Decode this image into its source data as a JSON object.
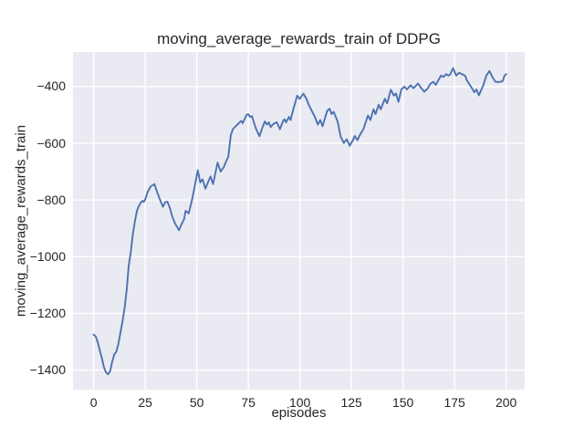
{
  "chart_data": {
    "type": "line",
    "title": "moving_average_rewards_train of DDPG",
    "xlabel": "episodes",
    "ylabel": "moving_average_rewards_train",
    "x_ticks": [
      0,
      25,
      50,
      75,
      100,
      125,
      150,
      175,
      200
    ],
    "y_ticks": [
      -400,
      -600,
      -800,
      -1000,
      -1200,
      -1400
    ],
    "xlim": [
      -10,
      209
    ],
    "ylim": [
      -1469,
      -278
    ],
    "grid": true,
    "legend_position": "none",
    "plot_background": "#eaeaf2",
    "grid_color": "#ffffff",
    "line_color": "#4c72b0",
    "text_color": "#262626",
    "series": [
      {
        "name": "moving_average_rewards_train",
        "points": [
          [
            0,
            -1275
          ],
          [
            1,
            -1281
          ],
          [
            2,
            -1302
          ],
          [
            3,
            -1330
          ],
          [
            4,
            -1358
          ],
          [
            5,
            -1390
          ],
          [
            6,
            -1408
          ],
          [
            7,
            -1415
          ],
          [
            8,
            -1404
          ],
          [
            9,
            -1370
          ],
          [
            10,
            -1345
          ],
          [
            11,
            -1335
          ],
          [
            12,
            -1308
          ],
          [
            13,
            -1268
          ],
          [
            14,
            -1228
          ],
          [
            15,
            -1182
          ],
          [
            16,
            -1120
          ],
          [
            17,
            -1033
          ],
          [
            18,
            -985
          ],
          [
            19,
            -921
          ],
          [
            20,
            -876
          ],
          [
            21,
            -838
          ],
          [
            22,
            -820
          ],
          [
            23,
            -808
          ],
          [
            23.7,
            -803
          ],
          [
            24.3,
            -807
          ],
          [
            25,
            -798
          ],
          [
            26.3,
            -770
          ],
          [
            27.7,
            -752
          ],
          [
            29.5,
            -744
          ],
          [
            30.7,
            -770
          ],
          [
            31.8,
            -792
          ],
          [
            33.6,
            -824
          ],
          [
            34.7,
            -808
          ],
          [
            35.8,
            -806
          ],
          [
            37.3,
            -835
          ],
          [
            38,
            -856
          ],
          [
            39.5,
            -883
          ],
          [
            41.4,
            -907
          ],
          [
            42.4,
            -889
          ],
          [
            43.9,
            -867
          ],
          [
            44.6,
            -838
          ],
          [
            45.4,
            -843
          ],
          [
            46.1,
            -847
          ],
          [
            47.6,
            -803
          ],
          [
            49.1,
            -749
          ],
          [
            50.5,
            -695
          ],
          [
            51.7,
            -738
          ],
          [
            52.8,
            -727
          ],
          [
            54.2,
            -760
          ],
          [
            55.7,
            -733
          ],
          [
            56.7,
            -717
          ],
          [
            57.9,
            -744
          ],
          [
            60.1,
            -668
          ],
          [
            61.6,
            -700
          ],
          [
            63.1,
            -684
          ],
          [
            64,
            -668
          ],
          [
            65.3,
            -647
          ],
          [
            66.5,
            -572
          ],
          [
            67.5,
            -550
          ],
          [
            68.5,
            -543
          ],
          [
            70.4,
            -529
          ],
          [
            71.5,
            -521
          ],
          [
            72.3,
            -529
          ],
          [
            74.1,
            -500
          ],
          [
            74.9,
            -497
          ],
          [
            75.9,
            -507
          ],
          [
            76.8,
            -504
          ],
          [
            77.8,
            -529
          ],
          [
            78.8,
            -550
          ],
          [
            80.4,
            -575
          ],
          [
            81.8,
            -545
          ],
          [
            83,
            -523
          ],
          [
            84,
            -534
          ],
          [
            84.9,
            -526
          ],
          [
            85.9,
            -543
          ],
          [
            87.1,
            -532
          ],
          [
            88.8,
            -526
          ],
          [
            90.3,
            -550
          ],
          [
            91.8,
            -523
          ],
          [
            92.5,
            -515
          ],
          [
            93.3,
            -526
          ],
          [
            94.7,
            -507
          ],
          [
            95.5,
            -518
          ],
          [
            97,
            -475
          ],
          [
            98.7,
            -432
          ],
          [
            99.9,
            -443
          ],
          [
            101.7,
            -425
          ],
          [
            103.2,
            -443
          ],
          [
            104.3,
            -464
          ],
          [
            105.8,
            -486
          ],
          [
            107.3,
            -507
          ],
          [
            108.7,
            -534
          ],
          [
            109.9,
            -518
          ],
          [
            111,
            -540
          ],
          [
            113.2,
            -486
          ],
          [
            114.4,
            -478
          ],
          [
            115.4,
            -497
          ],
          [
            116.4,
            -489
          ],
          [
            118.3,
            -523
          ],
          [
            119.8,
            -577
          ],
          [
            121.3,
            -599
          ],
          [
            122.7,
            -586
          ],
          [
            124.2,
            -609
          ],
          [
            125.7,
            -589
          ],
          [
            126.6,
            -574
          ],
          [
            127.9,
            -589
          ],
          [
            129,
            -572
          ],
          [
            130.8,
            -550
          ],
          [
            133,
            -502
          ],
          [
            134.2,
            -518
          ],
          [
            135.7,
            -480
          ],
          [
            136.7,
            -497
          ],
          [
            138.2,
            -464
          ],
          [
            139.2,
            -480
          ],
          [
            141.2,
            -443
          ],
          [
            142.3,
            -459
          ],
          [
            144.1,
            -411
          ],
          [
            145.6,
            -432
          ],
          [
            146.6,
            -424
          ],
          [
            147.8,
            -454
          ],
          [
            149.2,
            -410
          ],
          [
            150.7,
            -400
          ],
          [
            151.9,
            -410
          ],
          [
            153.7,
            -395
          ],
          [
            155.1,
            -406
          ],
          [
            157.3,
            -389
          ],
          [
            158.8,
            -405
          ],
          [
            160.3,
            -418
          ],
          [
            161.7,
            -409
          ],
          [
            163.3,
            -390
          ],
          [
            164.7,
            -383
          ],
          [
            165.9,
            -394
          ],
          [
            168.4,
            -361
          ],
          [
            169.6,
            -366
          ],
          [
            170.9,
            -356
          ],
          [
            172,
            -361
          ],
          [
            172.8,
            -358
          ],
          [
            174.3,
            -335
          ],
          [
            175.8,
            -361
          ],
          [
            177.2,
            -351
          ],
          [
            178.5,
            -356
          ],
          [
            180.2,
            -362
          ],
          [
            180.9,
            -377
          ],
          [
            182.4,
            -394
          ],
          [
            183.8,
            -410
          ],
          [
            184.6,
            -420
          ],
          [
            185.6,
            -410
          ],
          [
            186.8,
            -431
          ],
          [
            189,
            -394
          ],
          [
            190.4,
            -361
          ],
          [
            191.9,
            -345
          ],
          [
            193.4,
            -367
          ],
          [
            194.8,
            -383
          ],
          [
            196.5,
            -384
          ],
          [
            198.3,
            -381
          ],
          [
            199.2,
            -362
          ],
          [
            200,
            -356
          ]
        ]
      }
    ]
  }
}
